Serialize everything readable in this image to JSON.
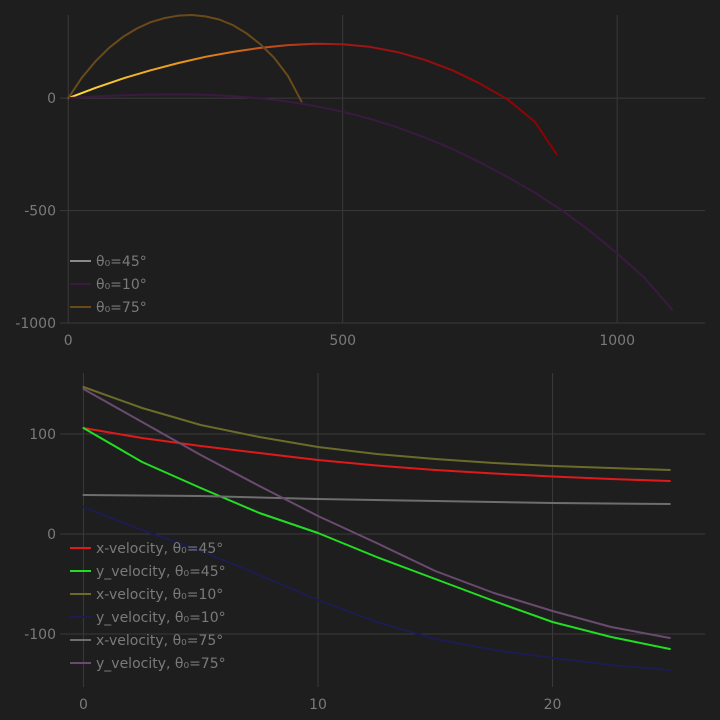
{
  "chart_data": [
    {
      "type": "line",
      "title": "",
      "xlabel": "",
      "ylabel": "",
      "xlim": [
        -15,
        1160
      ],
      "ylim": [
        -1000,
        370
      ],
      "xticks": [
        0,
        500,
        1000
      ],
      "yticks": [
        0,
        -500,
        -1000
      ],
      "grid": true,
      "legend_position": "bottom-left",
      "series": [
        {
          "name": "θ₀=45°",
          "color": "#ffe13a",
          "color_end": "#8b0000",
          "gradient": true,
          "points": [
            [
              0,
              0
            ],
            [
              50,
              46
            ],
            [
              100,
              88
            ],
            [
              150,
              124
            ],
            [
              200,
              156
            ],
            [
              250,
              184
            ],
            [
              300,
              206
            ],
            [
              350,
              224
            ],
            [
              400,
              236
            ],
            [
              450,
              242
            ],
            [
              500,
              240
            ],
            [
              550,
              228
            ],
            [
              600,
              205
            ],
            [
              650,
              170
            ],
            [
              700,
              124
            ],
            [
              750,
              65
            ],
            [
              800,
              -5
            ],
            [
              850,
              -105
            ],
            [
              890,
              -250
            ]
          ]
        },
        {
          "name": "θ₀=10°",
          "color": "#3a1a40",
          "gradient": false,
          "points": [
            [
              0,
              0
            ],
            [
              50,
              8
            ],
            [
              100,
              13
            ],
            [
              150,
              16
            ],
            [
              200,
              17
            ],
            [
              250,
              15
            ],
            [
              300,
              9
            ],
            [
              350,
              -1
            ],
            [
              400,
              -15
            ],
            [
              450,
              -35
            ],
            [
              500,
              -60
            ],
            [
              550,
              -92
            ],
            [
              600,
              -130
            ],
            [
              650,
              -175
            ],
            [
              700,
              -226
            ],
            [
              750,
              -285
            ],
            [
              800,
              -350
            ],
            [
              850,
              -420
            ],
            [
              900,
              -500
            ],
            [
              950,
              -590
            ],
            [
              1000,
              -690
            ],
            [
              1050,
              -800
            ],
            [
              1100,
              -940
            ]
          ]
        },
        {
          "name": "θ₀=75°",
          "color": "#6b4a1a",
          "gradient": false,
          "points": [
            [
              0,
              0
            ],
            [
              25,
              92
            ],
            [
              50,
              165
            ],
            [
              75,
              225
            ],
            [
              100,
              273
            ],
            [
              125,
              310
            ],
            [
              150,
              338
            ],
            [
              175,
              356
            ],
            [
              200,
              367
            ],
            [
              225,
              370
            ],
            [
              250,
              364
            ],
            [
              275,
              350
            ],
            [
              300,
              325
            ],
            [
              325,
              288
            ],
            [
              350,
              240
            ],
            [
              375,
              180
            ],
            [
              400,
              100
            ],
            [
              425,
              -15
            ]
          ]
        }
      ]
    },
    {
      "type": "line",
      "title": "",
      "xlabel": "",
      "ylabel": "",
      "xlim": [
        -1,
        26.5
      ],
      "ylim": [
        -153,
        161
      ],
      "xticks": [
        0,
        10,
        20
      ],
      "yticks": [
        100,
        0,
        -100
      ],
      "grid": true,
      "legend_position": "bottom-left",
      "series": [
        {
          "name": "x-velocity, θ₀=45°",
          "color": "#e01a1a",
          "points": [
            [
              0,
              106
            ],
            [
              2.5,
              96
            ],
            [
              5,
              88
            ],
            [
              7.5,
              81
            ],
            [
              10,
              74
            ],
            [
              12.5,
              68.5
            ],
            [
              15,
              64
            ],
            [
              17.5,
              60.5
            ],
            [
              20,
              57.5
            ],
            [
              22.5,
              55
            ],
            [
              25,
              53
            ]
          ]
        },
        {
          "name": "y_velocity, θ₀=45°",
          "color": "#22dd22",
          "points": [
            [
              0,
              106
            ],
            [
              2.5,
              72
            ],
            [
              5,
              46
            ],
            [
              7.5,
              21
            ],
            [
              10,
              1
            ],
            [
              12.5,
              -23
            ],
            [
              15,
              -45
            ],
            [
              17.5,
              -67
            ],
            [
              20,
              -88
            ],
            [
              22.5,
              -103
            ],
            [
              25,
              -115
            ]
          ]
        },
        {
          "name": "x-velocity, θ₀=10°",
          "color": "#6b6b2a",
          "points": [
            [
              0,
              147
            ],
            [
              2.5,
              126
            ],
            [
              5,
              109
            ],
            [
              7.5,
              97
            ],
            [
              10,
              87
            ],
            [
              12.5,
              80
            ],
            [
              15,
              75
            ],
            [
              17.5,
              71
            ],
            [
              20,
              68
            ],
            [
              22.5,
              66
            ],
            [
              25,
              64
            ]
          ]
        },
        {
          "name": "y_velocity, θ₀=10°",
          "color": "#1c1c50",
          "points": [
            [
              0,
              27
            ],
            [
              2.5,
              4
            ],
            [
              5,
              -17
            ],
            [
              7.5,
              -41
            ],
            [
              10,
              -66
            ],
            [
              12.5,
              -88
            ],
            [
              15,
              -105
            ],
            [
              17.5,
              -116
            ],
            [
              20,
              -124
            ],
            [
              22.5,
              -131
            ],
            [
              25,
              -136
            ]
          ]
        },
        {
          "name": "x-velocity, θ₀=75°",
          "color": "#6e6e6e",
          "points": [
            [
              0,
              39
            ],
            [
              5,
              38
            ],
            [
              10,
              35
            ],
            [
              15,
              33
            ],
            [
              20,
              31
            ],
            [
              25,
              30
            ]
          ]
        },
        {
          "name": "y_velocity, θ₀=75°",
          "color": "#6b4a70",
          "points": [
            [
              0,
              145
            ],
            [
              2.5,
              112
            ],
            [
              5,
              79
            ],
            [
              7.5,
              48
            ],
            [
              10,
              18
            ],
            [
              12.5,
              -9
            ],
            [
              15,
              -37
            ],
            [
              17.5,
              -59
            ],
            [
              20,
              -77
            ],
            [
              22.5,
              -93
            ],
            [
              25,
              -104
            ]
          ]
        }
      ]
    }
  ]
}
